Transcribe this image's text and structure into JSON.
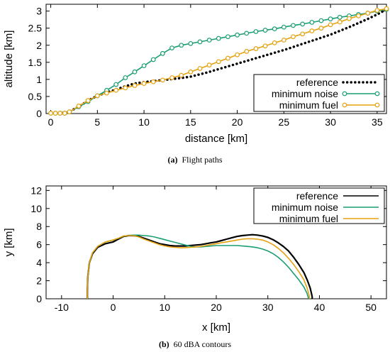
{
  "colors": {
    "reference": "#000000",
    "minimum_noise": "#1a9e74",
    "minimum_fuel": "#e6a10f",
    "axis": "#000000",
    "legend_border": "#000000"
  },
  "chart_data": [
    {
      "type": "line",
      "caption_prefix": "(a)",
      "caption": "Flight paths",
      "xlabel": "distance [km]",
      "ylabel": "altitude [km]",
      "xlim": [
        -0.5,
        36
      ],
      "ylim": [
        0,
        3.2
      ],
      "xticks": [
        0,
        5,
        10,
        15,
        20,
        25,
        30,
        35
      ],
      "yticks": [
        0,
        0.5,
        1,
        1.5,
        2,
        2.5,
        3
      ],
      "xtick_labels": [
        "0",
        "5",
        "10",
        "15",
        "20",
        "25",
        "30",
        "35"
      ],
      "ytick_labels": [
        "0",
        "0.5",
        "1",
        "1.5",
        "2",
        "2.5",
        "3"
      ],
      "grid": false,
      "legend_position": "bottom-right",
      "series": [
        {
          "name": "reference",
          "style": "dotted",
          "x": [
            0,
            1,
            1.7,
            3,
            4,
            5,
            6,
            7,
            8,
            9,
            10,
            11,
            12,
            13,
            14,
            15,
            16,
            17,
            18,
            19,
            20,
            21,
            22,
            23,
            24,
            25,
            26,
            27,
            28,
            29,
            30,
            31,
            32,
            33,
            34,
            35,
            36
          ],
          "y": [
            0.01,
            0.01,
            0.02,
            0.2,
            0.38,
            0.52,
            0.62,
            0.7,
            0.8,
            0.88,
            0.92,
            0.95,
            0.98,
            1.01,
            1.04,
            1.08,
            1.15,
            1.22,
            1.3,
            1.38,
            1.46,
            1.54,
            1.62,
            1.7,
            1.78,
            1.86,
            1.95,
            2.04,
            2.13,
            2.22,
            2.31,
            2.42,
            2.53,
            2.65,
            2.77,
            2.9,
            3.05
          ]
        },
        {
          "name": "minimum noise",
          "style": "line-circles",
          "x": [
            0,
            0.5,
            1,
            1.5,
            2,
            3,
            4,
            5,
            6,
            7,
            8,
            9,
            10,
            11,
            12,
            13,
            14,
            15,
            16,
            17,
            18,
            19,
            20,
            21,
            22,
            23,
            24,
            25,
            26,
            27,
            28,
            29,
            30,
            31,
            32,
            33,
            34,
            35,
            36
          ],
          "y": [
            0.01,
            0.01,
            0.01,
            0.01,
            0.05,
            0.2,
            0.35,
            0.52,
            0.68,
            0.85,
            1.05,
            1.22,
            1.4,
            1.58,
            1.76,
            1.92,
            2.0,
            2.05,
            2.1,
            2.15,
            2.2,
            2.25,
            2.3,
            2.35,
            2.4,
            2.44,
            2.48,
            2.53,
            2.58,
            2.62,
            2.67,
            2.72,
            2.77,
            2.82,
            2.86,
            2.9,
            2.94,
            3.0,
            3.05
          ]
        },
        {
          "name": "minimum fuel",
          "style": "line-circles",
          "x": [
            0,
            0.5,
            1,
            1.5,
            2,
            3,
            4,
            5,
            6,
            7,
            8,
            9,
            10,
            11,
            12,
            13,
            14,
            15,
            16,
            17,
            18,
            19,
            20,
            21,
            22,
            23,
            24,
            25,
            26,
            27,
            28,
            29,
            30,
            31,
            32,
            33,
            34,
            35,
            36
          ],
          "y": [
            0.01,
            0.01,
            0.01,
            0.01,
            0.05,
            0.22,
            0.38,
            0.52,
            0.6,
            0.68,
            0.75,
            0.82,
            0.88,
            0.93,
            0.98,
            1.05,
            1.12,
            1.22,
            1.32,
            1.42,
            1.52,
            1.62,
            1.72,
            1.82,
            1.9,
            1.98,
            2.07,
            2.15,
            2.25,
            2.33,
            2.42,
            2.5,
            2.6,
            2.68,
            2.78,
            2.86,
            2.94,
            3.02,
            3.07
          ]
        }
      ]
    },
    {
      "type": "line",
      "caption_prefix": "(b)",
      "caption": "60 dBA contours",
      "xlabel": "x [km]",
      "ylabel": "y [km]",
      "xlim": [
        -13,
        53
      ],
      "ylim": [
        0,
        12.5
      ],
      "xticks": [
        -10,
        0,
        10,
        20,
        30,
        40,
        50
      ],
      "yticks": [
        0,
        2,
        4,
        6,
        8,
        10,
        12
      ],
      "xtick_labels": [
        "-10",
        "0",
        "10",
        "20",
        "30",
        "40",
        "50"
      ],
      "ytick_labels": [
        "0",
        "2",
        "4",
        "6",
        "8",
        "10",
        "12"
      ],
      "grid": false,
      "legend_position": "top-right",
      "series": [
        {
          "name": "reference",
          "x": [
            -5.0,
            -5.0,
            -4.9,
            -4.6,
            -4.0,
            -3.0,
            -1.5,
            0.0,
            1.0,
            2.0,
            3.0,
            4.0,
            5.0,
            6.0,
            7.0,
            8.0,
            9.0,
            10.0,
            11.0,
            12.0,
            13.0,
            14.0,
            15.0,
            16.0,
            17.0,
            18.0,
            19.0,
            20.0,
            21.0,
            22.0,
            23.0,
            24.0,
            25.0,
            26.0,
            27.0,
            28.0,
            29.0,
            30.0,
            31.0,
            32.0,
            33.0,
            34.0,
            35.0,
            36.0,
            37.0,
            37.7,
            38.2,
            38.5,
            38.6,
            38.6
          ],
          "y": [
            0.0,
            1.0,
            2.5,
            4.0,
            5.0,
            5.7,
            6.1,
            6.3,
            6.6,
            6.9,
            7.0,
            7.0,
            6.9,
            6.7,
            6.5,
            6.3,
            6.1,
            6.0,
            5.9,
            5.85,
            5.85,
            5.85,
            5.9,
            5.95,
            6.0,
            6.1,
            6.2,
            6.3,
            6.45,
            6.6,
            6.75,
            6.9,
            7.0,
            7.05,
            7.1,
            7.05,
            6.95,
            6.8,
            6.55,
            6.2,
            5.8,
            5.3,
            4.6,
            3.8,
            2.9,
            2.0,
            1.2,
            0.5,
            0.2,
            0.0
          ]
        },
        {
          "name": "minimum noise",
          "x": [
            -5.0,
            -5.0,
            -4.9,
            -4.6,
            -4.0,
            -3.0,
            -1.5,
            0.0,
            1.0,
            2.0,
            3.0,
            4.0,
            5.0,
            6.0,
            7.0,
            8.0,
            9.0,
            10.0,
            11.0,
            12.0,
            13.0,
            14.0,
            15.0,
            16.0,
            17.0,
            18.0,
            19.0,
            20.0,
            21.0,
            22.0,
            23.0,
            24.0,
            25.0,
            26.0,
            27.0,
            28.0,
            29.0,
            30.0,
            31.0,
            32.0,
            33.0,
            34.0,
            35.0,
            36.0,
            37.0,
            37.6,
            37.8,
            37.9
          ],
          "y": [
            0.0,
            1.0,
            2.5,
            4.0,
            5.1,
            5.8,
            6.3,
            6.5,
            6.7,
            6.95,
            7.0,
            7.05,
            7.05,
            7.0,
            6.95,
            6.85,
            6.7,
            6.55,
            6.4,
            6.25,
            6.1,
            5.95,
            5.8,
            5.75,
            5.75,
            5.8,
            5.85,
            5.9,
            5.9,
            5.9,
            5.9,
            5.9,
            5.85,
            5.8,
            5.75,
            5.65,
            5.5,
            5.3,
            5.0,
            4.6,
            4.1,
            3.5,
            2.8,
            2.1,
            1.3,
            0.6,
            0.2,
            0.0
          ]
        },
        {
          "name": "minimum fuel",
          "x": [
            -5.0,
            -5.0,
            -4.9,
            -4.6,
            -4.0,
            -3.0,
            -1.5,
            0.0,
            1.0,
            2.0,
            3.0,
            4.0,
            5.0,
            6.0,
            7.0,
            8.0,
            9.0,
            10.0,
            11.0,
            12.0,
            13.0,
            14.0,
            15.0,
            16.0,
            17.0,
            18.0,
            19.0,
            20.0,
            21.0,
            22.0,
            23.0,
            24.0,
            25.0,
            26.0,
            27.0,
            28.0,
            29.0,
            30.0,
            31.0,
            32.0,
            33.0,
            34.0,
            35.0,
            36.0,
            37.0,
            37.6,
            38.0,
            38.1
          ],
          "y": [
            0.0,
            1.0,
            2.5,
            4.0,
            5.1,
            5.8,
            6.3,
            6.5,
            6.7,
            6.95,
            7.0,
            7.0,
            6.85,
            6.6,
            6.4,
            6.2,
            6.0,
            5.85,
            5.75,
            5.7,
            5.65,
            5.65,
            5.7,
            5.75,
            5.8,
            5.9,
            6.0,
            6.1,
            6.2,
            6.3,
            6.4,
            6.5,
            6.6,
            6.65,
            6.65,
            6.6,
            6.5,
            6.3,
            6.0,
            5.6,
            5.1,
            4.5,
            3.8,
            3.0,
            2.1,
            1.2,
            0.4,
            0.0
          ]
        }
      ]
    }
  ]
}
